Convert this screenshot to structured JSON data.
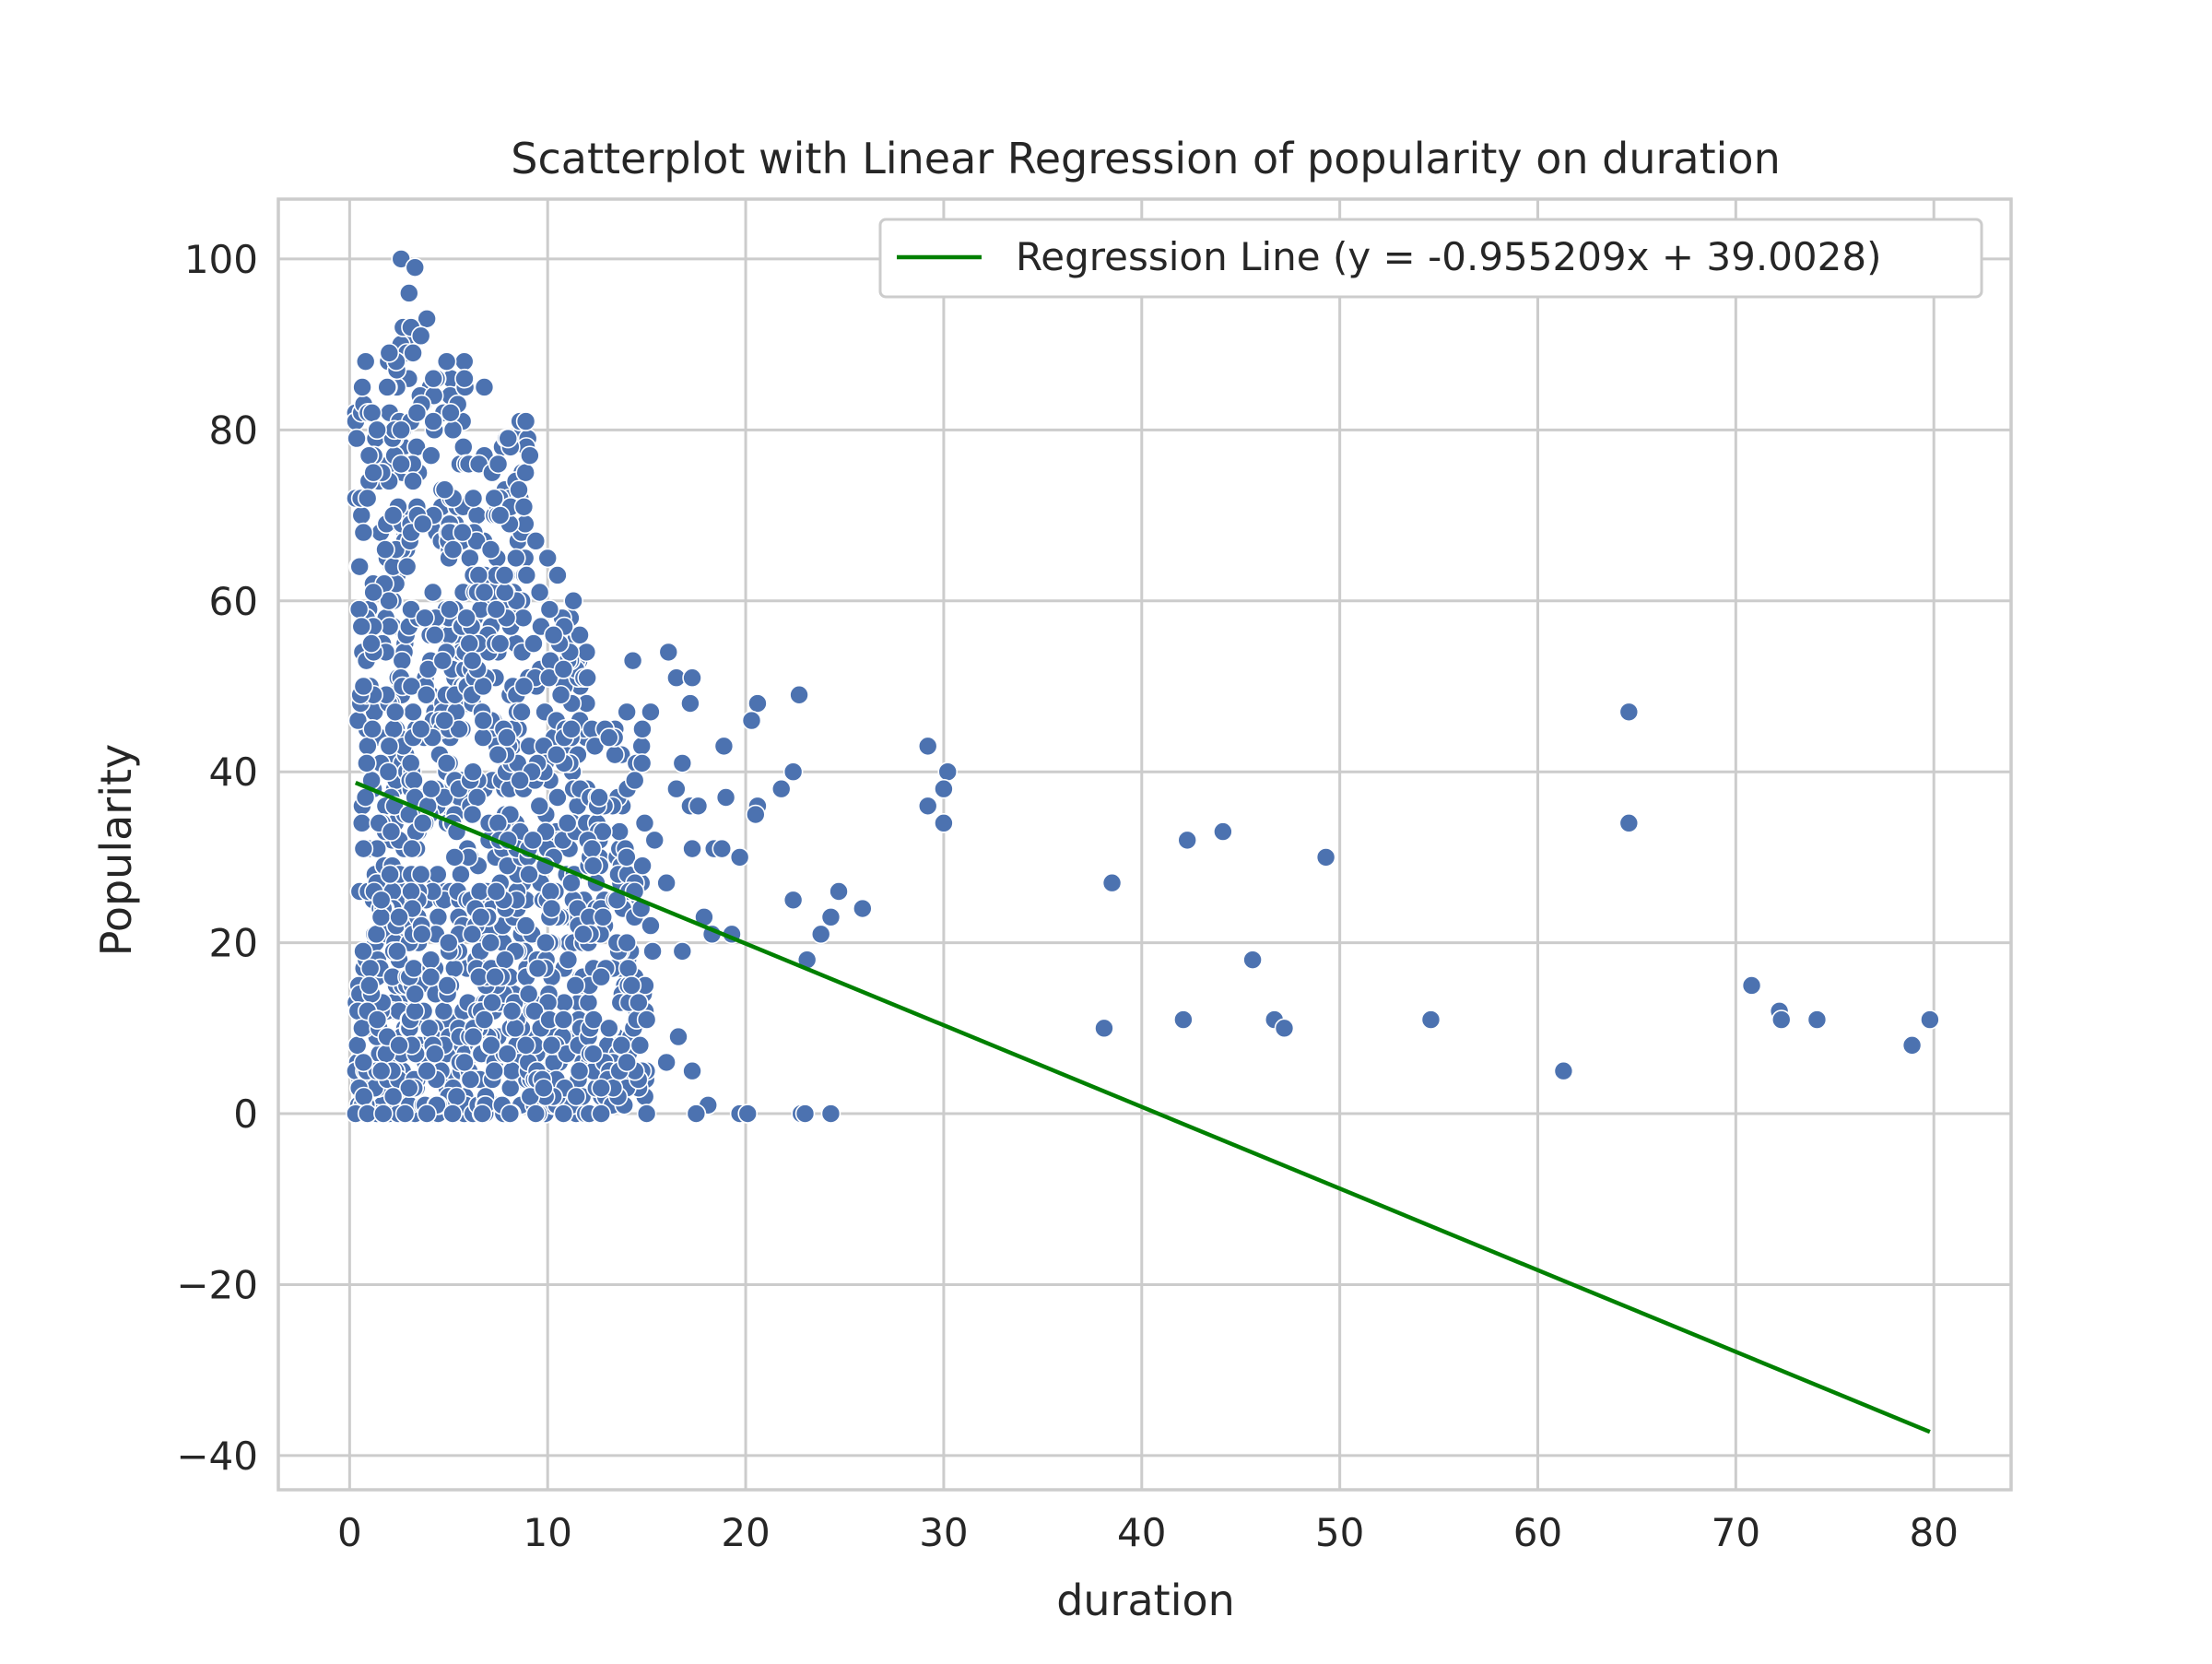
{
  "chart_data": {
    "type": "scatter",
    "title": "Scatterplot with Linear Regression of popularity on duration",
    "xlabel": "duration",
    "ylabel": "Popularity",
    "xlim": [
      -3.6,
      83.9
    ],
    "ylim": [
      -44,
      107
    ],
    "xticks": [
      0,
      10,
      20,
      30,
      40,
      50,
      60,
      70,
      80
    ],
    "yticks": [
      -40,
      -20,
      0,
      20,
      40,
      60,
      80,
      100
    ],
    "xtick_labels": [
      "0",
      "10",
      "20",
      "30",
      "40",
      "50",
      "60",
      "70",
      "80"
    ],
    "ytick_labels": [
      "−40",
      "−20",
      "0",
      "20",
      "40",
      "60",
      "80",
      "100"
    ],
    "grid": true,
    "legend": {
      "placement": "top-right",
      "entries": [
        "Regression Line (y = -0.955209x + 39.0028)"
      ]
    },
    "colors": {
      "points": "#4c72b0",
      "line": "#008000",
      "grid": "#cccccc",
      "spine": "#cccccc"
    },
    "series": [
      {
        "kind": "scatter",
        "points": [
          [
            2.6,
            100
          ],
          [
            3.3,
            99
          ],
          [
            3.0,
            96
          ],
          [
            3.9,
            93
          ],
          [
            2.7,
            92
          ],
          [
            3.1,
            92
          ],
          [
            3.6,
            91
          ],
          [
            2.0,
            89
          ],
          [
            3.2,
            89
          ],
          [
            4.9,
            88
          ],
          [
            1.9,
            85
          ],
          [
            5.8,
            86
          ],
          [
            6.8,
            85
          ],
          [
            3.4,
            82
          ],
          [
            5.1,
            82
          ],
          [
            8.6,
            81
          ],
          [
            8.9,
            81
          ],
          [
            2.6,
            80
          ],
          [
            8.0,
            79
          ],
          [
            9.1,
            77
          ],
          [
            1.2,
            75
          ],
          [
            3.2,
            74
          ],
          [
            2.6,
            76
          ],
          [
            4.8,
            73
          ],
          [
            7.3,
            72
          ],
          [
            0.9,
            72
          ],
          [
            2.2,
            70
          ],
          [
            8.8,
            71
          ],
          [
            7.6,
            70
          ],
          [
            5.7,
            68
          ],
          [
            0.7,
            68
          ],
          [
            1.8,
            66
          ],
          [
            9.4,
            67
          ],
          [
            10.0,
            65
          ],
          [
            8.4,
            65
          ],
          [
            2.9,
            64
          ],
          [
            10.5,
            63
          ],
          [
            1.2,
            61
          ],
          [
            6.8,
            61
          ],
          [
            9.6,
            61
          ],
          [
            3.1,
            59
          ],
          [
            7.4,
            59
          ],
          [
            10.1,
            59
          ],
          [
            11.3,
            60
          ],
          [
            0.6,
            57
          ],
          [
            3.8,
            58
          ],
          [
            5.9,
            58
          ],
          [
            4.3,
            56
          ],
          [
            10.3,
            56
          ],
          [
            1.1,
            55
          ],
          [
            7.6,
            55
          ],
          [
            6.2,
            53
          ],
          [
            10.8,
            52
          ],
          [
            14.3,
            53
          ],
          [
            16.1,
            54
          ],
          [
            16.5,
            51
          ],
          [
            17.3,
            51
          ],
          [
            12.0,
            51
          ],
          [
            0.7,
            50
          ],
          [
            8.8,
            50
          ],
          [
            22.7,
            49
          ],
          [
            20.6,
            48
          ],
          [
            17.2,
            48
          ],
          [
            2.3,
            47
          ],
          [
            15.2,
            47
          ],
          [
            14.0,
            47
          ],
          [
            64.6,
            47
          ],
          [
            20.3,
            46
          ],
          [
            3.6,
            45
          ],
          [
            11.2,
            45
          ],
          [
            13.1,
            44
          ],
          [
            18.9,
            43
          ],
          [
            29.2,
            43
          ],
          [
            2.0,
            43
          ],
          [
            4.9,
            41
          ],
          [
            9.2,
            40
          ],
          [
            16.8,
            41
          ],
          [
            22.4,
            40
          ],
          [
            30.2,
            40
          ],
          [
            8.6,
            39
          ],
          [
            14.4,
            39
          ],
          [
            16.5,
            38
          ],
          [
            21.8,
            38
          ],
          [
            30.0,
            38
          ],
          [
            0.8,
            37
          ],
          [
            12.6,
            37
          ],
          [
            19.0,
            37
          ],
          [
            17.2,
            36
          ],
          [
            17.6,
            36
          ],
          [
            20.6,
            36
          ],
          [
            29.2,
            36
          ],
          [
            20.5,
            35
          ],
          [
            6.2,
            35
          ],
          [
            11.0,
            34
          ],
          [
            14.9,
            34
          ],
          [
            30.0,
            34
          ],
          [
            64.6,
            34
          ],
          [
            2.1,
            33
          ],
          [
            44.1,
            33
          ],
          [
            8.0,
            32
          ],
          [
            15.4,
            32
          ],
          [
            42.3,
            32
          ],
          [
            0.7,
            31
          ],
          [
            17.3,
            31
          ],
          [
            18.4,
            31
          ],
          [
            18.8,
            31
          ],
          [
            5.3,
            30
          ],
          [
            19.7,
            30
          ],
          [
            49.3,
            30
          ],
          [
            12.3,
            29
          ],
          [
            3.6,
            28
          ],
          [
            11.2,
            27
          ],
          [
            16.0,
            27
          ],
          [
            38.5,
            27
          ],
          [
            7.4,
            26
          ],
          [
            24.7,
            26
          ],
          [
            1.6,
            25
          ],
          [
            22.4,
            25
          ],
          [
            13.5,
            25
          ],
          [
            10.2,
            24
          ],
          [
            25.9,
            24
          ],
          [
            2.5,
            23
          ],
          [
            17.9,
            23
          ],
          [
            24.3,
            23
          ],
          [
            8.9,
            22
          ],
          [
            15.2,
            22
          ],
          [
            11.8,
            21
          ],
          [
            18.3,
            21
          ],
          [
            19.3,
            21
          ],
          [
            23.8,
            21
          ],
          [
            5.0,
            20
          ],
          [
            14.0,
            20
          ],
          [
            2.4,
            19
          ],
          [
            15.3,
            19
          ],
          [
            16.8,
            19
          ],
          [
            23.1,
            18
          ],
          [
            45.6,
            18
          ],
          [
            9.5,
            17
          ],
          [
            4.1,
            16
          ],
          [
            12.7,
            16
          ],
          [
            1.0,
            15
          ],
          [
            11.4,
            15
          ],
          [
            70.8,
            15
          ],
          [
            3.3,
            14
          ],
          [
            7.2,
            13
          ],
          [
            0.9,
            12
          ],
          [
            8.2,
            12
          ],
          [
            72.2,
            12
          ],
          [
            1.4,
            11
          ],
          [
            6.8,
            11
          ],
          [
            10.8,
            11
          ],
          [
            15.0,
            11
          ],
          [
            42.1,
            11
          ],
          [
            46.7,
            11
          ],
          [
            54.6,
            11
          ],
          [
            72.3,
            11
          ],
          [
            74.1,
            11
          ],
          [
            79.8,
            11
          ],
          [
            38.1,
            10
          ],
          [
            47.2,
            10
          ],
          [
            13.1,
            10
          ],
          [
            1.9,
            9
          ],
          [
            16.6,
            9
          ],
          [
            2.5,
            8
          ],
          [
            8.9,
            8
          ],
          [
            10.2,
            8
          ],
          [
            78.9,
            8
          ],
          [
            4.3,
            7
          ],
          [
            12.3,
            7
          ],
          [
            0.7,
            6
          ],
          [
            5.8,
            6
          ],
          [
            14.0,
            6
          ],
          [
            16.0,
            6
          ],
          [
            1.6,
            5
          ],
          [
            3.9,
            5
          ],
          [
            7.3,
            5
          ],
          [
            11.6,
            5
          ],
          [
            17.3,
            5
          ],
          [
            61.3,
            5
          ],
          [
            3.0,
            3
          ],
          [
            9.8,
            3
          ],
          [
            12.7,
            3
          ],
          [
            2.2,
            2
          ],
          [
            5.4,
            2
          ],
          [
            4.4,
            1
          ],
          [
            7.7,
            1
          ],
          [
            18.1,
            1
          ],
          [
            0.3,
            0
          ],
          [
            0.9,
            0
          ],
          [
            1.7,
            0
          ],
          [
            2.8,
            0
          ],
          [
            3.9,
            0
          ],
          [
            5.2,
            0
          ],
          [
            6.7,
            0
          ],
          [
            8.1,
            0
          ],
          [
            9.4,
            0
          ],
          [
            10.8,
            0
          ],
          [
            12.1,
            0
          ],
          [
            12.7,
            0
          ],
          [
            15.0,
            0
          ],
          [
            17.5,
            0
          ],
          [
            19.7,
            0
          ],
          [
            20.1,
            0
          ],
          [
            22.8,
            0
          ],
          [
            23.0,
            0
          ],
          [
            24.3,
            0
          ]
        ]
      },
      {
        "kind": "line",
        "name": "Regression Line (y = -0.955209x + 39.0028)",
        "slope": -0.955209,
        "intercept": 39.0028,
        "x_range": [
          0.3,
          79.8
        ]
      }
    ],
    "dense_band": [
      [
        0.3,
        0,
        3.0,
        92
      ],
      [
        3.0,
        0,
        6.0,
        88
      ],
      [
        6.0,
        0,
        9.0,
        80
      ],
      [
        9.0,
        0,
        12.0,
        60
      ],
      [
        12.0,
        0,
        15.0,
        45
      ]
    ]
  }
}
